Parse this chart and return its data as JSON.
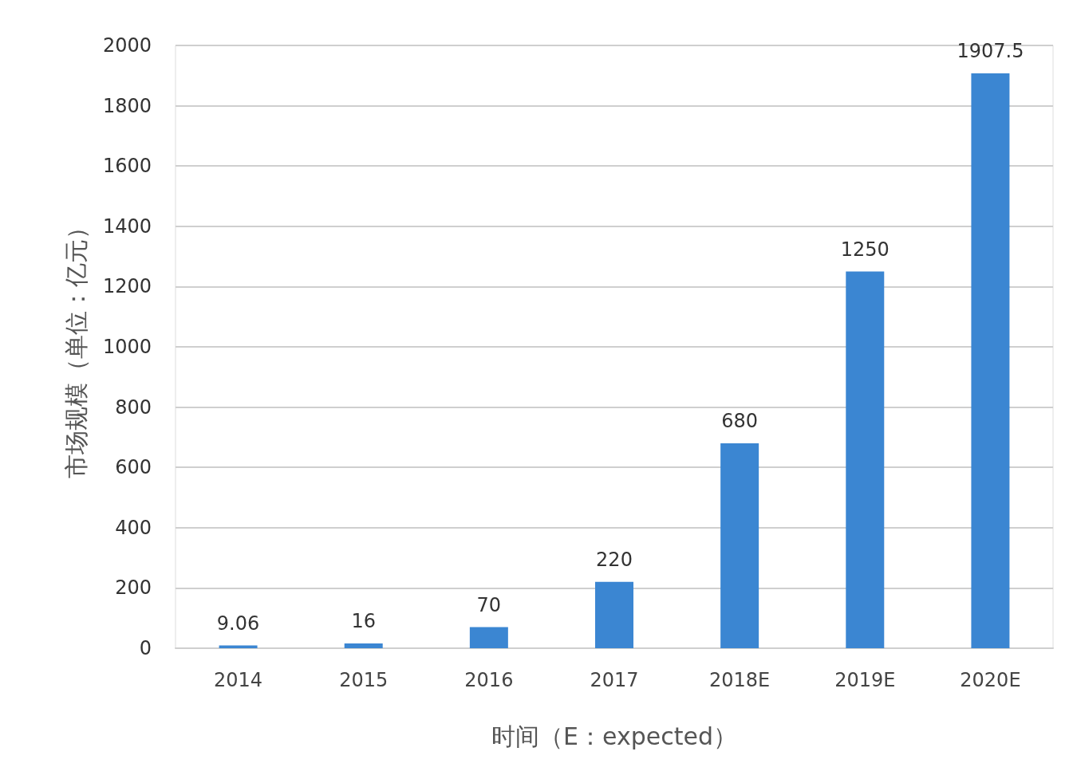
{
  "chart_data": {
    "type": "bar",
    "xlabel": "时间（E：expected）",
    "ylabel": "市场规模（单位：亿元）",
    "categories": [
      "2014",
      "2015",
      "2016",
      "2017",
      "2018E",
      "2019E",
      "2020E"
    ],
    "values": [
      9.06,
      16,
      70,
      220,
      680,
      1250,
      1907.5
    ],
    "color": "#3b86d2",
    "ylim": [
      0,
      2000
    ],
    "yticks": [
      0,
      200,
      400,
      600,
      800,
      1000,
      1200,
      1400,
      1600,
      1800,
      2000
    ],
    "grid": "y",
    "data_labels": true
  }
}
